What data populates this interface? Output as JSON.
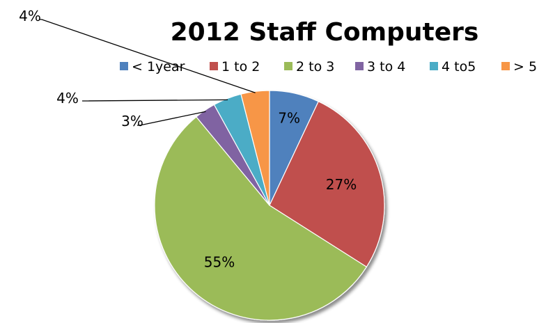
{
  "chart_data": {
    "type": "pie",
    "title": "2012 Staff Computers",
    "categories": [
      "< 1year",
      "1 to 2",
      "2 to 3",
      "3 to 4",
      "4 to5",
      "> 5"
    ],
    "values": [
      7,
      27,
      55,
      3,
      4,
      4
    ],
    "labels": [
      "7%",
      "27%",
      "55%",
      "3%",
      "4%",
      "4%"
    ],
    "colors": [
      "#4F81BD",
      "#C0504D",
      "#9BBB59",
      "#8064A2",
      "#4BACC6",
      "#F79646"
    ],
    "legend_position": "top",
    "start_angle": "12 o'clock",
    "direction": "clockwise"
  }
}
